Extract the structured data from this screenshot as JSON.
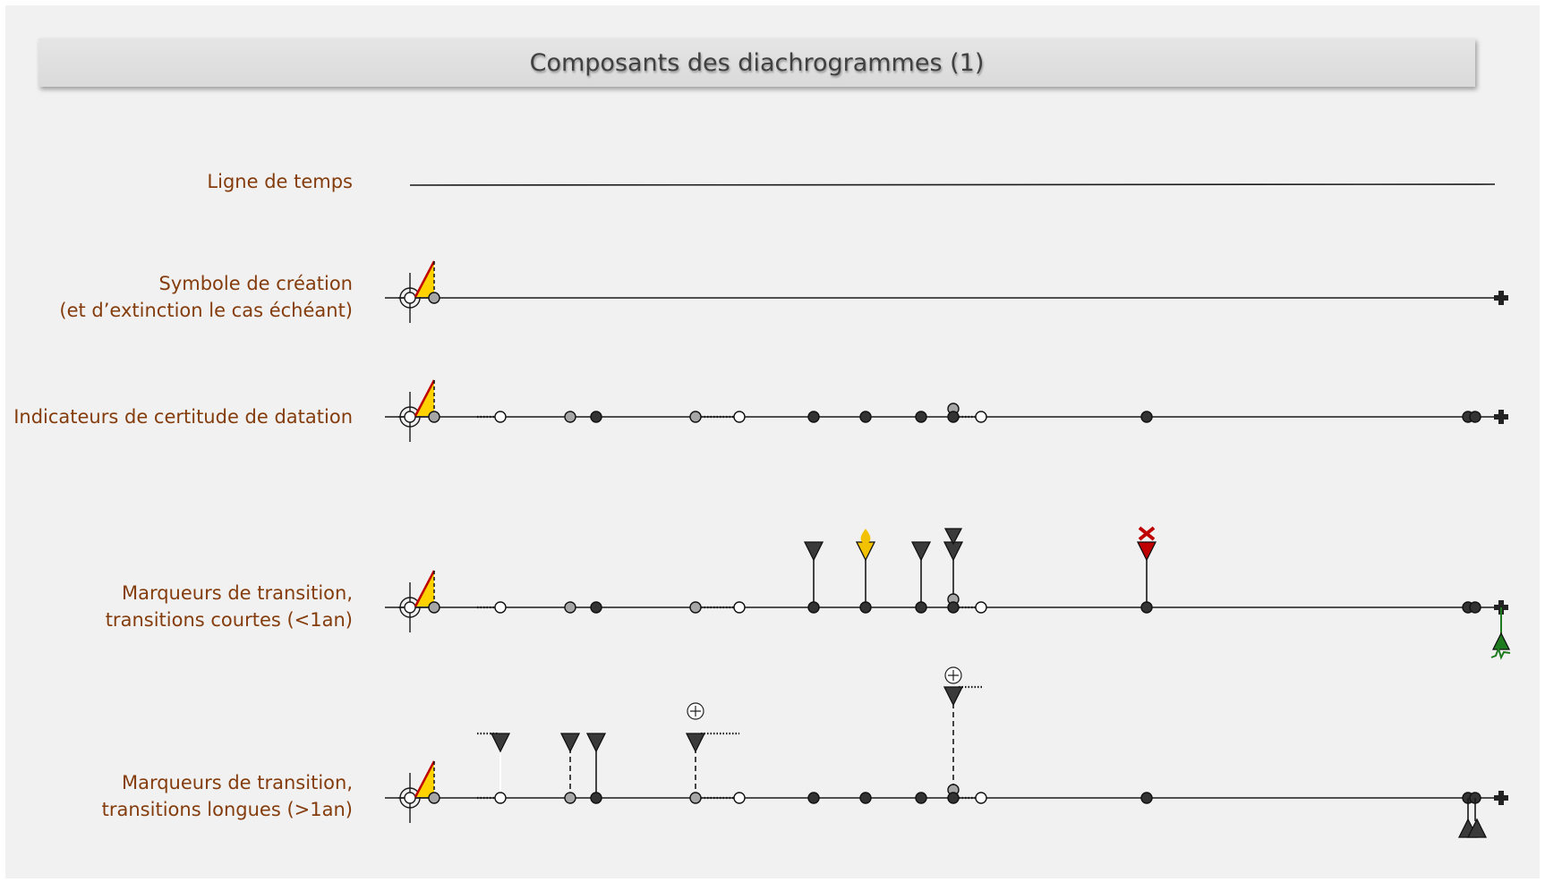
{
  "title": "Composants des diachrogrammes (1)",
  "rows": {
    "timeline": {
      "label": "Ligne de temps"
    },
    "creation": {
      "label_line1": "Symbole de création",
      "label_line2": "(et d’extinction le cas échéant)"
    },
    "certainty": {
      "label": "Indicateurs de certitude de datation"
    },
    "short": {
      "label_line1": "Marqueurs de transition,",
      "label_line2": "transitions courtes (<1an)"
    },
    "long": {
      "label_line1": "Marqueurs de transition,",
      "label_line2": "transitions longues (>1an)"
    }
  },
  "colors": {
    "label": "#843c0c",
    "line": "#1a1a1a",
    "creation_fill": "#ffd200",
    "creation_edge": "#c00000",
    "marker_dark": "#3a3a3a",
    "marker_gold": "#f2c200",
    "marker_red": "#c00000",
    "marker_green": "#1e7b1e",
    "point_grey": "#a6a6a6",
    "point_white": "#ffffff"
  },
  "icons": [
    "creation-symbol",
    "extinction-cross-icon",
    "down-triangle-marker",
    "plus-circle-icon",
    "red-x-icon",
    "green-up-triangle",
    "flame-marker"
  ]
}
